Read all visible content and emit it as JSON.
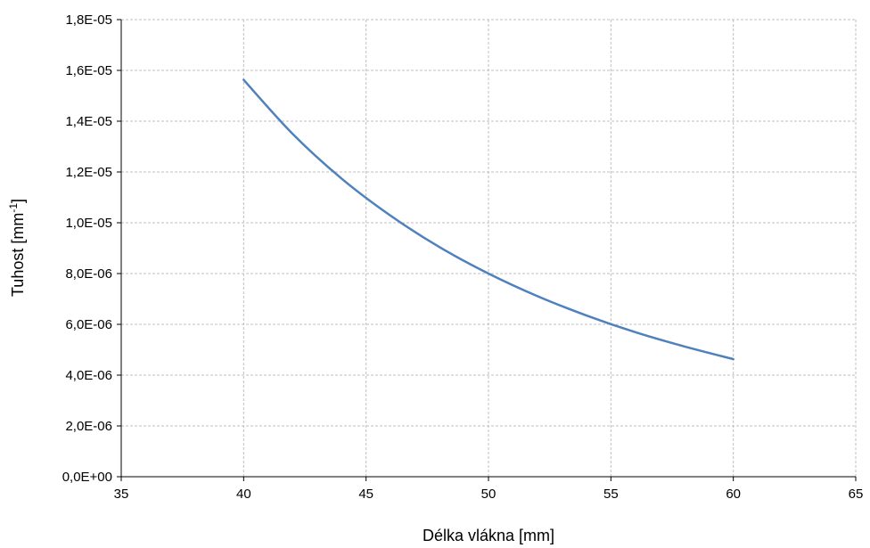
{
  "chart_data": {
    "type": "line",
    "title": "",
    "xlabel": "Délka vlákna [mm]",
    "ylabel": {
      "text": "Tuhost [mm",
      "superscript": "-1",
      "suffix": "]"
    },
    "xlim": [
      35,
      65
    ],
    "ylim": [
      0,
      1.8e-05
    ],
    "x_ticks": [
      35,
      40,
      45,
      50,
      55,
      60,
      65
    ],
    "x_tick_labels": [
      "35",
      "40",
      "45",
      "50",
      "55",
      "60",
      "65"
    ],
    "y_ticks": [
      0,
      2e-06,
      4e-06,
      6e-06,
      8e-06,
      1e-05,
      1.2e-05,
      1.4e-05,
      1.6e-05,
      1.8e-05
    ],
    "y_tick_labels": [
      "0,0E+00",
      "2,0E-06",
      "4,0E-06",
      "6,0E-06",
      "8,0E-06",
      "1,0E-05",
      "1,2E-05",
      "1,4E-05",
      "1,6E-05",
      "1,8E-05"
    ],
    "grid": true,
    "legend": "none",
    "series": [
      {
        "color": "#4f81bd",
        "x": [
          40,
          42,
          44,
          46,
          48,
          50,
          52,
          54,
          56,
          58,
          60
        ],
        "y": [
          1.563e-05,
          1.35e-05,
          1.174e-05,
          1.028e-05,
          9.04e-06,
          8e-06,
          7.11e-06,
          6.35e-06,
          5.69e-06,
          5.13e-06,
          4.63e-06
        ]
      }
    ]
  }
}
